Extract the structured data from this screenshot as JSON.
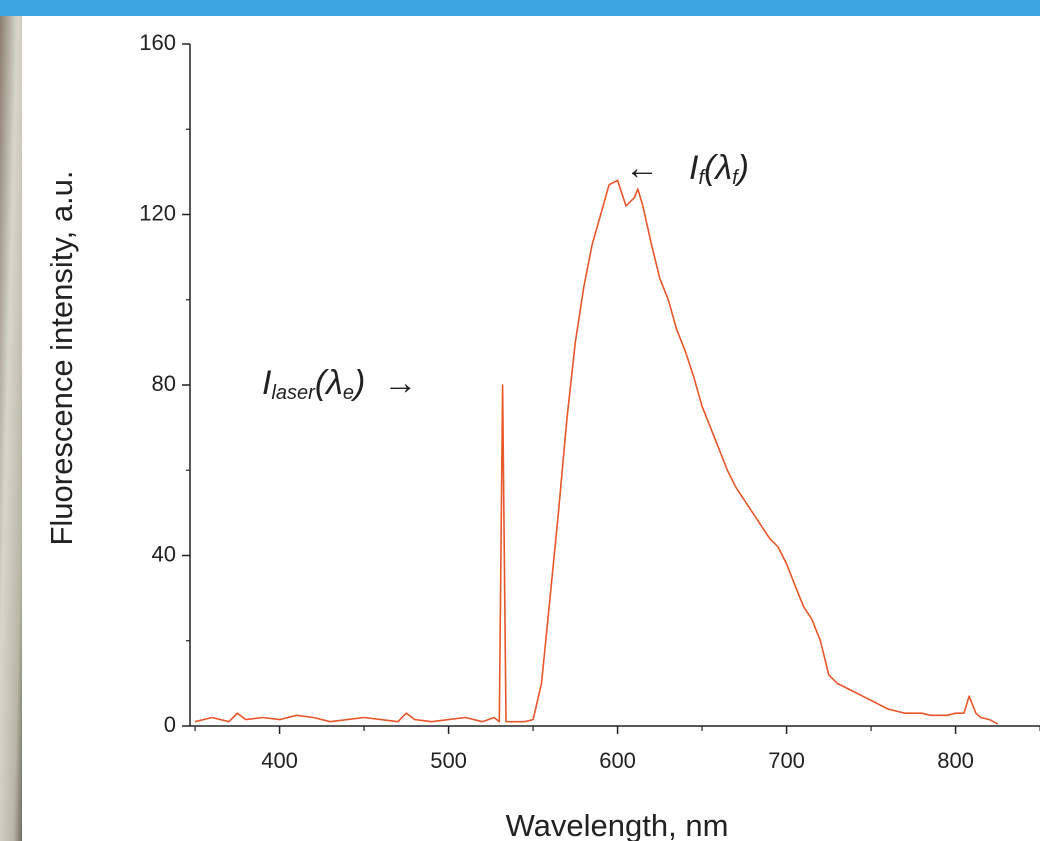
{
  "chart_data": {
    "type": "line",
    "x_label": "Wavelength, nm",
    "y_label": "Fluorescence intensity, a.u.",
    "xlim": [
      347,
      850
    ],
    "ylim": [
      0,
      160
    ],
    "xticks": [
      400,
      500,
      600,
      700,
      800
    ],
    "yticks": [
      0,
      40,
      80,
      120,
      160
    ],
    "xticks_minor": [
      350,
      450,
      550,
      650,
      750,
      850
    ],
    "yticks_minor": [
      20,
      60,
      100,
      140
    ],
    "series": [
      {
        "color": "#e8562a",
        "x": [
          350,
          360,
          370,
          375,
          380,
          390,
          400,
          410,
          420,
          430,
          440,
          450,
          460,
          470,
          475,
          480,
          490,
          500,
          510,
          520,
          527,
          530,
          532,
          534,
          540,
          545,
          550,
          555,
          560,
          565,
          570,
          575,
          580,
          585,
          590,
          595,
          600,
          605,
          610,
          612,
          615,
          620,
          625,
          630,
          635,
          640,
          645,
          650,
          655,
          660,
          665,
          670,
          675,
          680,
          685,
          690,
          695,
          700,
          705,
          710,
          715,
          720,
          725,
          730,
          735,
          740,
          745,
          750,
          755,
          760,
          765,
          770,
          775,
          780,
          785,
          790,
          795,
          800,
          805,
          808,
          812,
          815,
          820,
          825
        ],
        "values": [
          1,
          2,
          1,
          3,
          1.5,
          2,
          1.5,
          2.5,
          2,
          1,
          1.5,
          2,
          1.5,
          1,
          3,
          1.5,
          1,
          1.5,
          2,
          1,
          2,
          1,
          80,
          1,
          1,
          1,
          1.5,
          10,
          30,
          50,
          72,
          90,
          103,
          113,
          120,
          127,
          128,
          122,
          124,
          126,
          122,
          113,
          105,
          100,
          93,
          88,
          82,
          75,
          70,
          65,
          60,
          56,
          53,
          50,
          47,
          44,
          42,
          38,
          33,
          28,
          25,
          20,
          12,
          10,
          9,
          8,
          7,
          6,
          5,
          4,
          3.5,
          3,
          3,
          3,
          2.5,
          2.5,
          2.5,
          3,
          3,
          7,
          3,
          2,
          1.5,
          0.5
        ]
      }
    ],
    "annotations": [
      {
        "parts": [
          {
            "text": "I"
          },
          {
            "text": "laser",
            "sub": true
          },
          {
            "text": "(λ"
          },
          {
            "text": "e",
            "sub": true
          },
          {
            "text": ")"
          }
        ],
        "arrow": "→"
      },
      {
        "parts": [
          {
            "text": "I"
          },
          {
            "text": "f",
            "sub": true
          },
          {
            "text": "(λ"
          },
          {
            "text": "f",
            "sub": true
          },
          {
            "text": ")"
          }
        ],
        "arrow": "←"
      }
    ]
  }
}
